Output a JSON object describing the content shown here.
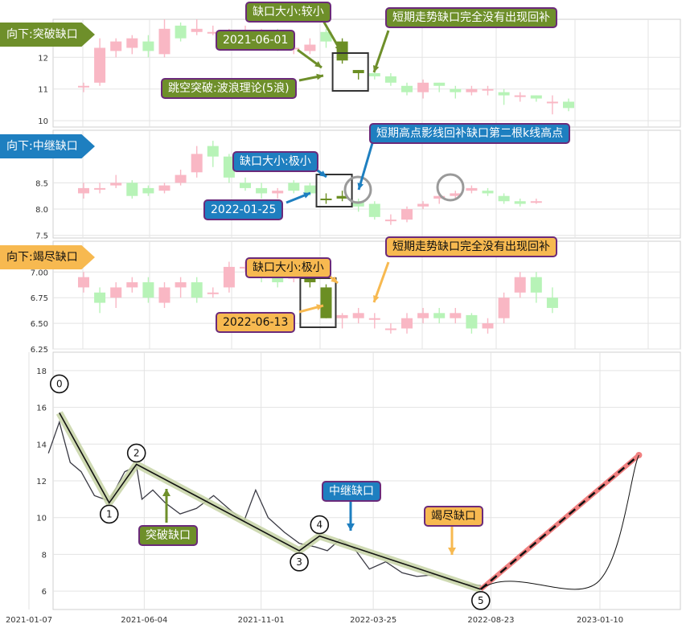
{
  "colors": {
    "green_tag": "#6e8f2a",
    "blue_tag": "#1e7fc0",
    "orange_tag": "#f7b950",
    "candle_up": "#f9b7c4",
    "candle_down": "#b7f3b7",
    "gap_candle": "#6b8e23",
    "note_border": "#6b2a7a",
    "wave_band": "#c7d3a6",
    "forecast_line": "#f08080"
  },
  "panels": [
    {
      "tag": "向下:突破缺口",
      "tag_color": "green",
      "yticks": [
        "12",
        "11",
        "10"
      ],
      "notes": {
        "gap_size": "缺口大小:较小",
        "date": "2021-06-01",
        "theory": "跳空突破:波浪理论(5浪)",
        "not_filled": "短期走势缺口完全没有出现回补"
      }
    },
    {
      "tag": "向下:中继缺口",
      "tag_color": "blue",
      "yticks": [
        "8.5",
        "8.0",
        "7.5"
      ],
      "notes": {
        "gap_size": "缺口大小:极小",
        "date": "2022-01-25",
        "refill": "短期高点影线回补缺口第二根k线高点"
      }
    },
    {
      "tag": "向下:竭尽缺口",
      "tag_color": "orange",
      "yticks": [
        "7.00",
        "6.75",
        "6.50",
        "6.25"
      ],
      "notes": {
        "gap_size": "缺口大小:极小",
        "date": "2022-06-13",
        "not_filled": "短期走势缺口完全没有出现回补"
      }
    }
  ],
  "main_chart": {
    "yticks": [
      "18",
      "16",
      "14",
      "12",
      "10",
      "8",
      "6"
    ],
    "xticks": [
      "2021-01-07",
      "2021-06-04",
      "2021-11-01",
      "2022-03-25",
      "2022-08-23",
      "2023-01-10"
    ],
    "wave_labels": [
      "0",
      "1",
      "2",
      "3",
      "4",
      "5"
    ],
    "gap_labels": {
      "breakaway": "突破缺口",
      "continuation": "中继缺口",
      "exhaustion": "竭尽缺口"
    }
  },
  "chart_data": [
    {
      "type": "candlestick",
      "panel": "向下:突破缺口",
      "ylim": [
        9.8,
        13.2
      ],
      "candles": [
        {
          "o": 11.1,
          "c": 11.1,
          "h": 11.2,
          "l": 10.9
        },
        {
          "o": 11.2,
          "c": 12.3,
          "h": 12.6,
          "l": 11.1
        },
        {
          "o": 12.2,
          "c": 12.5,
          "h": 12.6,
          "l": 12.0
        },
        {
          "o": 12.3,
          "c": 12.6,
          "h": 12.7,
          "l": 12.1
        },
        {
          "o": 12.5,
          "c": 12.2,
          "h": 12.7,
          "l": 12.0
        },
        {
          "o": 12.1,
          "c": 12.9,
          "h": 13.2,
          "l": 12.0
        },
        {
          "o": 13.0,
          "c": 12.6,
          "h": 13.1,
          "l": 12.5
        },
        {
          "o": 12.8,
          "c": 12.9,
          "h": 13.2,
          "l": 12.7
        },
        {
          "o": 12.8,
          "c": 12.8,
          "h": 13.0,
          "l": 12.7
        },
        {
          "o": 12.7,
          "c": 12.8,
          "h": 12.9,
          "l": 12.6
        },
        {
          "o": 12.7,
          "c": 12.8,
          "h": 13.0,
          "l": 12.6
        },
        {
          "o": 12.8,
          "c": 12.8,
          "h": 12.9,
          "l": 12.6
        },
        {
          "o": 12.8,
          "c": 12.3,
          "h": 12.9,
          "l": 12.2
        },
        {
          "o": 12.3,
          "c": 12.3,
          "h": 12.5,
          "l": 12.1
        },
        {
          "o": 12.2,
          "c": 12.4,
          "h": 12.6,
          "l": 12.1
        },
        {
          "o": 12.8,
          "c": 12.5,
          "h": 12.9,
          "l": 12.3
        },
        {
          "o": 12.5,
          "c": 11.9,
          "h": 12.6,
          "l": 11.8
        },
        {
          "o": 11.6,
          "c": 11.5,
          "h": 11.6,
          "l": 11.3
        },
        {
          "o": 11.5,
          "c": 11.4,
          "h": 11.6,
          "l": 11.3
        },
        {
          "o": 11.4,
          "c": 11.2,
          "h": 11.5,
          "l": 11.1
        },
        {
          "o": 11.1,
          "c": 10.9,
          "h": 11.2,
          "l": 10.8
        },
        {
          "o": 10.9,
          "c": 11.2,
          "h": 11.3,
          "l": 10.7
        },
        {
          "o": 11.2,
          "c": 11.1,
          "h": 11.2,
          "l": 10.9
        },
        {
          "o": 11.0,
          "c": 10.9,
          "h": 11.1,
          "l": 10.7
        },
        {
          "o": 10.9,
          "c": 11.0,
          "h": 11.1,
          "l": 10.8
        },
        {
          "o": 11.0,
          "c": 11.0,
          "h": 11.1,
          "l": 10.8
        },
        {
          "o": 10.9,
          "c": 10.8,
          "h": 11.0,
          "l": 10.5
        },
        {
          "o": 10.8,
          "c": 10.8,
          "h": 10.9,
          "l": 10.6
        },
        {
          "o": 10.8,
          "c": 10.7,
          "h": 10.8,
          "l": 10.6
        },
        {
          "o": 10.6,
          "c": 10.6,
          "h": 10.8,
          "l": 10.2
        },
        {
          "o": 10.6,
          "c": 10.4,
          "h": 10.7,
          "l": 10.3
        }
      ]
    },
    {
      "type": "candlestick",
      "panel": "向下:中继缺口",
      "ylim": [
        7.45,
        9.5
      ],
      "candles": [
        {
          "o": 8.3,
          "c": 8.4,
          "h": 8.5,
          "l": 8.2
        },
        {
          "o": 8.4,
          "c": 8.4,
          "h": 8.5,
          "l": 8.3
        },
        {
          "o": 8.45,
          "c": 8.5,
          "h": 8.65,
          "l": 8.4
        },
        {
          "o": 8.5,
          "c": 8.25,
          "h": 8.55,
          "l": 8.2
        },
        {
          "o": 8.4,
          "c": 8.3,
          "h": 8.45,
          "l": 8.25
        },
        {
          "o": 8.35,
          "c": 8.45,
          "h": 8.5,
          "l": 8.3
        },
        {
          "o": 8.5,
          "c": 8.65,
          "h": 8.75,
          "l": 8.45
        },
        {
          "o": 8.7,
          "c": 9.05,
          "h": 9.2,
          "l": 8.6
        },
        {
          "o": 9.2,
          "c": 9.0,
          "h": 9.3,
          "l": 8.8
        },
        {
          "o": 9.0,
          "c": 8.6,
          "h": 9.05,
          "l": 8.5
        },
        {
          "o": 8.5,
          "c": 8.4,
          "h": 8.6,
          "l": 8.35
        },
        {
          "o": 8.4,
          "c": 8.3,
          "h": 8.5,
          "l": 8.2
        },
        {
          "o": 8.3,
          "c": 8.35,
          "h": 8.4,
          "l": 8.2
        },
        {
          "o": 8.5,
          "c": 8.35,
          "h": 8.55,
          "l": 8.3
        },
        {
          "o": 8.45,
          "c": 8.3,
          "h": 8.5,
          "l": 8.25
        },
        {
          "o": 8.2,
          "c": 8.2,
          "h": 8.3,
          "l": 8.1
        },
        {
          "o": 8.2,
          "c": 8.25,
          "h": 8.35,
          "l": 8.15
        },
        {
          "o": 8.15,
          "c": 8.05,
          "h": 8.2,
          "l": 7.95
        },
        {
          "o": 8.1,
          "c": 7.85,
          "h": 8.15,
          "l": 7.8
        },
        {
          "o": 7.8,
          "c": 7.8,
          "h": 7.9,
          "l": 7.7
        },
        {
          "o": 7.8,
          "c": 8.0,
          "h": 8.05,
          "l": 7.75
        },
        {
          "o": 8.05,
          "c": 8.1,
          "h": 8.15,
          "l": 8.0
        },
        {
          "o": 8.2,
          "c": 8.25,
          "h": 8.3,
          "l": 8.1
        },
        {
          "o": 8.25,
          "c": 8.3,
          "h": 8.35,
          "l": 8.2
        },
        {
          "o": 8.35,
          "c": 8.4,
          "h": 8.45,
          "l": 8.3
        },
        {
          "o": 8.35,
          "c": 8.3,
          "h": 8.4,
          "l": 8.25
        },
        {
          "o": 8.25,
          "c": 8.15,
          "h": 8.3,
          "l": 8.1
        },
        {
          "o": 8.15,
          "c": 8.1,
          "h": 8.2,
          "l": 8.05
        },
        {
          "o": 8.15,
          "c": 8.15,
          "h": 8.2,
          "l": 8.1
        }
      ]
    },
    {
      "type": "candlestick",
      "panel": "向下:竭尽缺口",
      "ylim": [
        6.25,
        7.3
      ],
      "candles": [
        {
          "o": 6.85,
          "c": 6.95,
          "h": 7.0,
          "l": 6.8
        },
        {
          "o": 6.8,
          "c": 6.7,
          "h": 6.85,
          "l": 6.6
        },
        {
          "o": 6.75,
          "c": 6.85,
          "h": 6.9,
          "l": 6.65
        },
        {
          "o": 6.85,
          "c": 6.9,
          "h": 6.95,
          "l": 6.8
        },
        {
          "o": 6.9,
          "c": 6.75,
          "h": 6.95,
          "l": 6.7
        },
        {
          "o": 6.7,
          "c": 6.85,
          "h": 6.9,
          "l": 6.65
        },
        {
          "o": 6.85,
          "c": 6.9,
          "h": 6.95,
          "l": 6.75
        },
        {
          "o": 6.9,
          "c": 6.75,
          "h": 6.95,
          "l": 6.7
        },
        {
          "o": 6.8,
          "c": 6.8,
          "h": 6.85,
          "l": 6.75
        },
        {
          "o": 6.85,
          "c": 7.05,
          "h": 7.1,
          "l": 6.8
        },
        {
          "o": 7.05,
          "c": 7.05,
          "h": 7.1,
          "l": 7.0
        },
        {
          "o": 7.0,
          "c": 6.95,
          "h": 7.05,
          "l": 6.9
        },
        {
          "o": 6.95,
          "c": 6.9,
          "h": 7.0,
          "l": 6.85
        },
        {
          "o": 6.95,
          "c": 6.95,
          "h": 7.0,
          "l": 6.9
        },
        {
          "o": 6.95,
          "c": 6.9,
          "h": 6.98,
          "l": 6.85
        },
        {
          "o": 6.85,
          "c": 6.55,
          "h": 6.88,
          "l": 6.55
        },
        {
          "o": 6.55,
          "c": 6.58,
          "h": 6.6,
          "l": 6.45
        },
        {
          "o": 6.55,
          "c": 6.6,
          "h": 6.65,
          "l": 6.5
        },
        {
          "o": 6.55,
          "c": 6.55,
          "h": 6.6,
          "l": 6.45
        },
        {
          "o": 6.45,
          "c": 6.45,
          "h": 6.5,
          "l": 6.4
        },
        {
          "o": 6.45,
          "c": 6.55,
          "h": 6.6,
          "l": 6.4
        },
        {
          "o": 6.55,
          "c": 6.6,
          "h": 6.65,
          "l": 6.5
        },
        {
          "o": 6.6,
          "c": 6.55,
          "h": 6.65,
          "l": 6.5
        },
        {
          "o": 6.55,
          "c": 6.6,
          "h": 6.65,
          "l": 6.5
        },
        {
          "o": 6.58,
          "c": 6.45,
          "h": 6.6,
          "l": 6.4
        },
        {
          "o": 6.45,
          "c": 6.5,
          "h": 6.55,
          "l": 6.4
        },
        {
          "o": 6.55,
          "c": 6.75,
          "h": 6.8,
          "l": 6.5
        },
        {
          "o": 6.8,
          "c": 6.95,
          "h": 7.0,
          "l": 6.75
        },
        {
          "o": 6.95,
          "c": 6.8,
          "h": 7.0,
          "l": 6.7
        },
        {
          "o": 6.75,
          "c": 6.65,
          "h": 6.85,
          "l": 6.6
        }
      ]
    },
    {
      "type": "line",
      "panel": "main",
      "ylim": [
        5,
        19
      ],
      "xticks": [
        "2021-01-07",
        "2021-06-04",
        "2021-11-01",
        "2022-03-25",
        "2022-08-23",
        "2023-01-10"
      ],
      "price_x": [
        "2021-02-01",
        "2021-02-15",
        "2021-03-01",
        "2021-03-15",
        "2021-04-01",
        "2021-04-20",
        "2021-05-10",
        "2021-05-25",
        "2021-06-01",
        "2021-06-15",
        "2021-07-01",
        "2021-07-20",
        "2021-08-10",
        "2021-09-01",
        "2021-09-20",
        "2021-10-10",
        "2021-10-25",
        "2021-11-10",
        "2021-12-01",
        "2021-12-20",
        "2022-01-10",
        "2022-01-25",
        "2022-02-10",
        "2022-03-01",
        "2022-03-20",
        "2022-04-10",
        "2022-05-01",
        "2022-05-20",
        "2022-06-13",
        "2022-07-01",
        "2022-07-20",
        "2022-08-10"
      ],
      "price_y": [
        13.5,
        15.2,
        13.0,
        12.5,
        11.2,
        10.9,
        12.5,
        12.8,
        11.0,
        11.5,
        10.8,
        10.2,
        10.5,
        11.2,
        10.5,
        9.8,
        11.5,
        10.0,
        9.2,
        8.6,
        8.4,
        8.2,
        8.8,
        8.3,
        7.2,
        7.6,
        7.0,
        6.8,
        6.9,
        6.6,
        6.4,
        6.3
      ],
      "wave_points": [
        {
          "label": "0",
          "x": "2021-02-15",
          "y": 15.7
        },
        {
          "label": "1",
          "x": "2021-04-20",
          "y": 10.8
        },
        {
          "label": "2",
          "x": "2021-05-25",
          "y": 12.9
        },
        {
          "label": "3",
          "x": "2021-12-20",
          "y": 8.2
        },
        {
          "label": "4",
          "x": "2022-01-15",
          "y": 9.0
        },
        {
          "label": "5",
          "x": "2022-08-10",
          "y": 6.1
        }
      ],
      "forecast": {
        "from": {
          "x": "2022-08-10",
          "y": 6.1
        },
        "to": {
          "x": "2023-03-01",
          "y": 13.4
        }
      }
    }
  ]
}
